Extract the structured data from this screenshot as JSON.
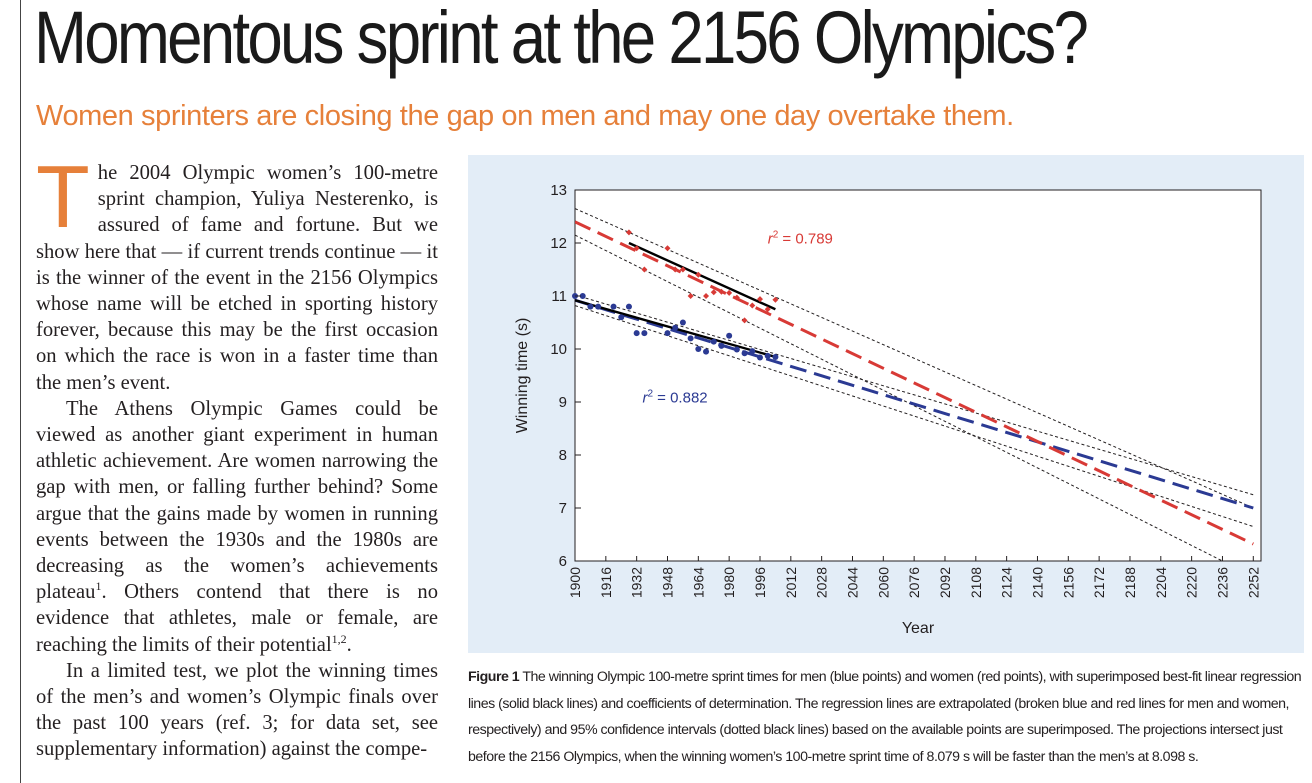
{
  "headline": "Momentous sprint at the 2156 Olympics?",
  "subhead": "Women sprinters are closing the gap on men and may one day overtake them.",
  "accent_color": "#e6803a",
  "article": {
    "dropcap": "T",
    "p1_rest": "he 2004 Olympic women’s 100-metre sprint champion, Yuliya Nesterenko, is assured of fame and fortune. But we show here that — if current trends continue — it is the winner of the event in the 2156 Olympics whose name will be etched in sporting history forever, because this may be the first occasion on which the race is won in a faster time than the men’s event.",
    "p2_text": "The Athens Olympic Games could be viewed as another giant experiment in human athletic achievement. Are women narrowing the gap with men, or falling further behind? Some argue that the gains made by women in running events between the 1930s and the 1980s are decreasing as the women’s achievements plateau",
    "p2_ref1": "1",
    "p2_mid": ". Others contend that there is no evidence that athletes, male or female, are reaching the limits of their potential",
    "p2_ref2": "1,2",
    "p2_end": ".",
    "p3_text": "In a limited test, we plot the winning times of the men’s and women’s Olympic finals over the past 100 years (ref. 3; for data set, see supplementary information) against the compe-"
  },
  "figure": {
    "caption_label": "Figure 1",
    "caption_text": " The winning Olympic 100-metre sprint times for men (blue points) and women (red points), with superimposed best-fit linear regression lines (solid black lines) and coefficients of determination. The regression lines are extrapolated (broken blue and red lines for men and women, respectively) and 95% confidence intervals (dotted black lines) based on the available points are superimposed. The projections intersect just before the 2156 Olympics, when the winning women’s 100-metre sprint time of 8.079 s will be faster than the men’s at 8.098 s."
  },
  "chart_data": {
    "type": "scatter",
    "xlabel": "Year",
    "ylabel": "Winning time (s)",
    "xlim": [
      1900,
      2256
    ],
    "ylim": [
      6,
      13
    ],
    "xticks": [
      1900,
      1916,
      1932,
      1948,
      1964,
      1980,
      1996,
      2012,
      2028,
      2044,
      2060,
      2076,
      2092,
      2108,
      2124,
      2140,
      2156,
      2172,
      2188,
      2204,
      2220,
      2236,
      2252
    ],
    "yticks": [
      6,
      7,
      8,
      9,
      10,
      11,
      12,
      13
    ],
    "grid": false,
    "series": [
      {
        "color": "#2b3a93",
        "points": [
          [
            1900,
            11.0
          ],
          [
            1904,
            11.0
          ],
          [
            1908,
            10.8
          ],
          [
            1912,
            10.8
          ],
          [
            1920,
            10.8
          ],
          [
            1924,
            10.6
          ],
          [
            1928,
            10.8
          ],
          [
            1932,
            10.3
          ],
          [
            1936,
            10.3
          ],
          [
            1948,
            10.3
          ],
          [
            1952,
            10.4
          ],
          [
            1956,
            10.5
          ],
          [
            1960,
            10.2
          ],
          [
            1964,
            10.0
          ],
          [
            1968,
            9.95
          ],
          [
            1972,
            10.14
          ],
          [
            1976,
            10.06
          ],
          [
            1980,
            10.25
          ],
          [
            1984,
            9.99
          ],
          [
            1988,
            9.92
          ],
          [
            1992,
            9.96
          ],
          [
            1996,
            9.84
          ],
          [
            2000,
            9.87
          ],
          [
            2004,
            9.85
          ]
        ],
        "fit": {
          "x": [
            1900,
            2004
          ],
          "y": [
            10.92,
            9.85
          ]
        },
        "extrapolation": {
          "x": [
            1900,
            2252
          ],
          "y": [
            10.92,
            7.0
          ]
        },
        "ci_upper": {
          "x": [
            1900,
            2252
          ],
          "y": [
            11.02,
            7.25
          ]
        },
        "ci_lower": {
          "x": [
            1900,
            2252
          ],
          "y": [
            10.82,
            6.65
          ]
        },
        "annotation": {
          "prefix": "r",
          "sup": "2",
          "text": " = 0.882",
          "x": 1935,
          "y": 9.1
        }
      },
      {
        "color": "#d83a36",
        "points": [
          [
            1928,
            12.2
          ],
          [
            1932,
            11.9
          ],
          [
            1936,
            11.5
          ],
          [
            1948,
            11.9
          ],
          [
            1952,
            11.5
          ],
          [
            1956,
            11.5
          ],
          [
            1960,
            11.0
          ],
          [
            1964,
            11.4
          ],
          [
            1968,
            11.0
          ],
          [
            1972,
            11.07
          ],
          [
            1976,
            11.08
          ],
          [
            1980,
            11.06
          ],
          [
            1984,
            10.97
          ],
          [
            1988,
            10.54
          ],
          [
            1992,
            10.82
          ],
          [
            1996,
            10.94
          ],
          [
            2000,
            10.75
          ],
          [
            2004,
            10.93
          ]
        ],
        "fit": {
          "x": [
            1928,
            2004
          ],
          "y": [
            12.0,
            10.75
          ]
        },
        "extrapolation": {
          "x": [
            1900,
            2252
          ],
          "y": [
            12.4,
            6.32
          ]
        },
        "ci_upper": {
          "x": [
            1900,
            2252
          ],
          "y": [
            12.65,
            7.0
          ]
        },
        "ci_lower": {
          "x": [
            1900,
            2236
          ],
          "y": [
            12.15,
            6.0
          ]
        },
        "annotation": {
          "prefix": "r",
          "sup": "2",
          "text": " = 0.789",
          "x": 2000,
          "y": 12.1
        }
      }
    ]
  }
}
